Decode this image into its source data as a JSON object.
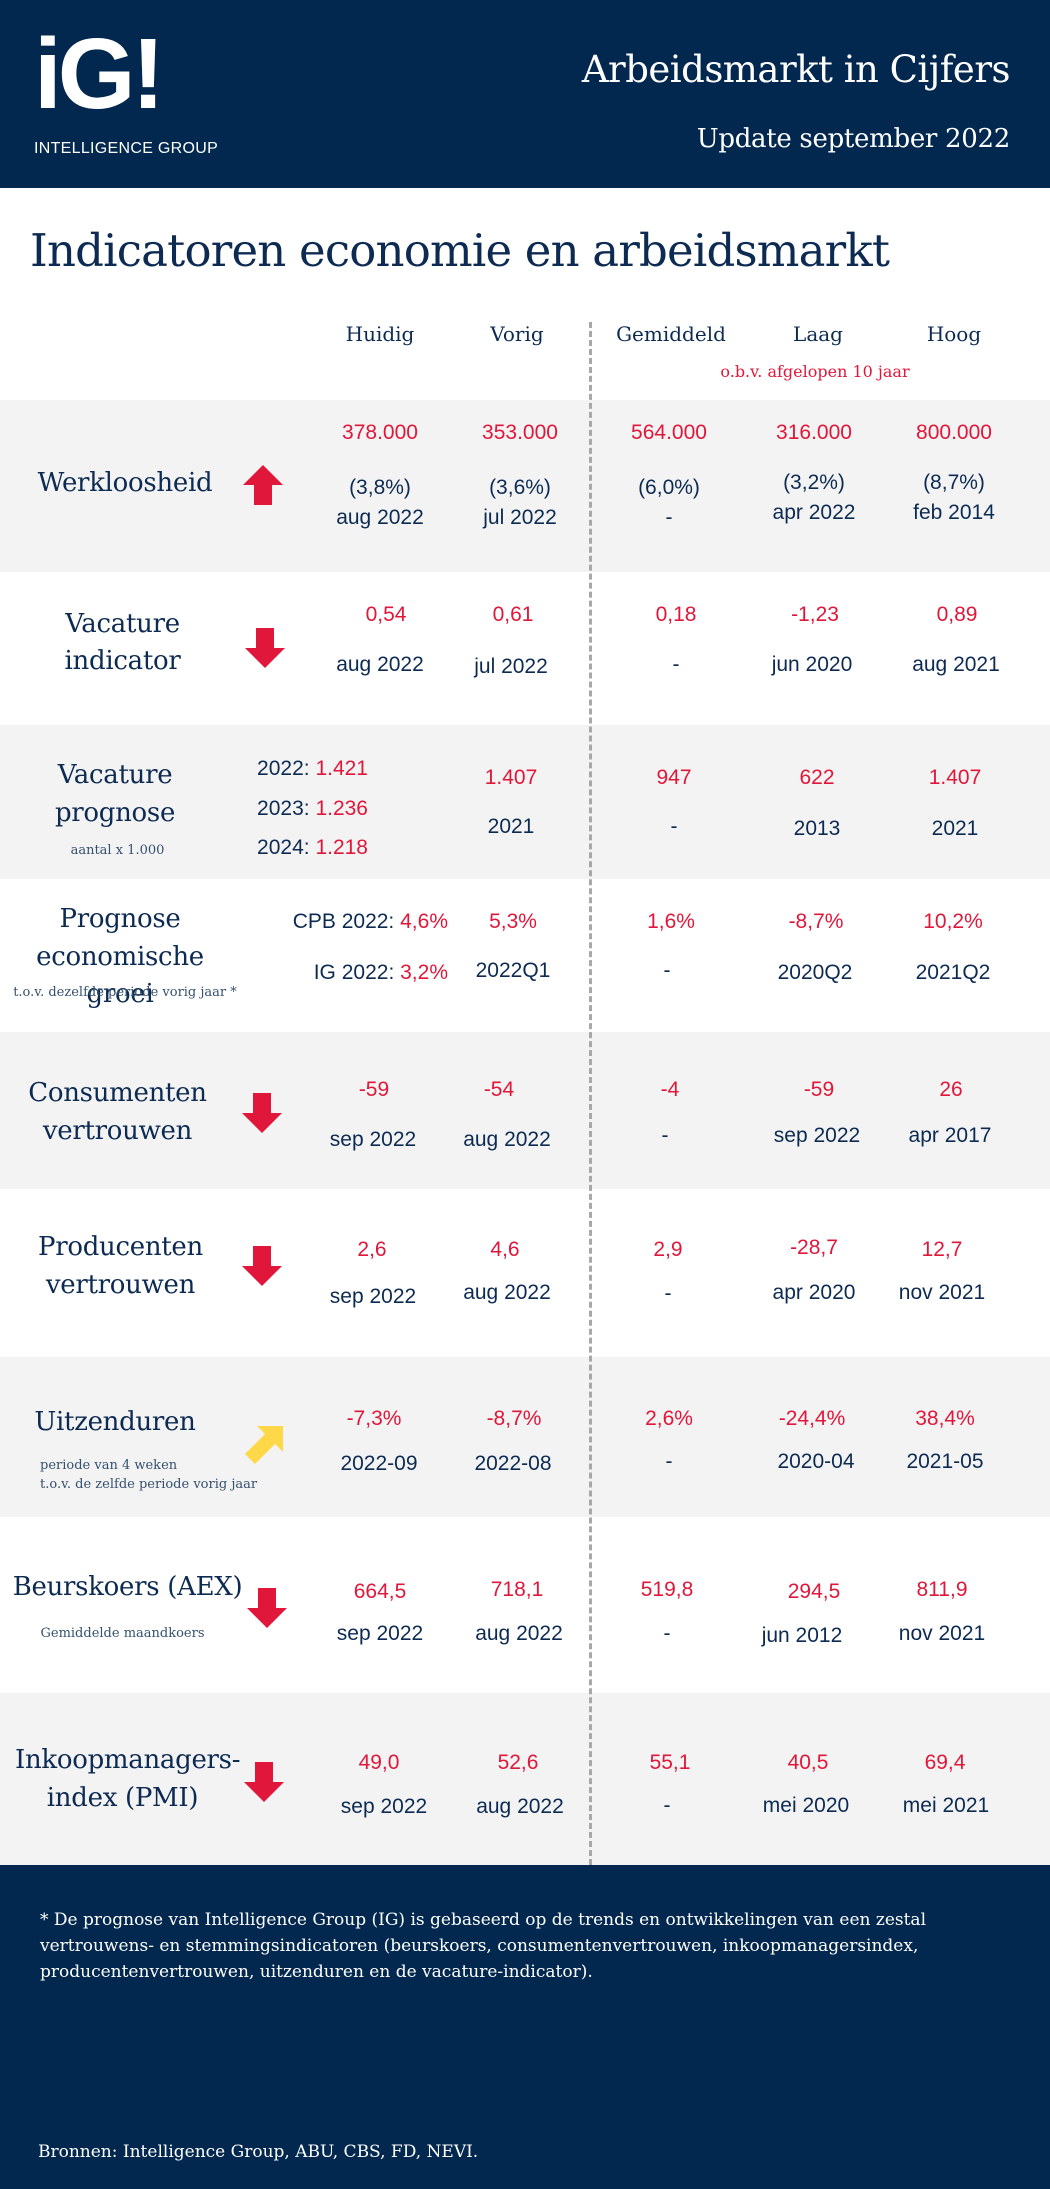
{
  "header": {
    "logo": "iG!",
    "logo_sub": "INTELLIGENCE GROUP",
    "title": "Arbeidsmarkt in Cijfers",
    "subtitle": "Update september 2022"
  },
  "page_title": "Indicatoren economie en arbeidsmarkt",
  "columns": {
    "huidig": "Huidig",
    "vorig": "Vorig",
    "gemiddeld": "Gemiddeld",
    "laag": "Laag",
    "hoog": "Hoog",
    "note": "o.b.v. afgelopen 10 jaar"
  },
  "colors": {
    "navy": "#03284f",
    "red": "#e0173a",
    "yellow": "#ffd84a",
    "row_shade": "#f3f3f3"
  },
  "rows": {
    "werkloosheid": {
      "label": "Werkloosheid",
      "trend": "up-red",
      "huidig": "378.000",
      "huidig_pct": "(3,8%)",
      "huidig_date": "aug 2022",
      "vorig": "353.000",
      "vorig_pct": "(3,6%)",
      "vorig_date": "jul 2022",
      "gem": "564.000",
      "gem_pct": "(6,0%)",
      "gem_date": "-",
      "laag": "316.000",
      "laag_pct": "(3,2%)",
      "laag_date": "apr 2022",
      "hoog": "800.000",
      "hoog_pct": "(8,7%)",
      "hoog_date": "feb 2014"
    },
    "vacature_indicator": {
      "label1": "Vacature",
      "label2": "indicator",
      "trend": "down-red",
      "huidig": "0,54",
      "huidig_date": "aug 2022",
      "vorig": "0,61",
      "vorig_date": "jul 2022",
      "gem": "0,18",
      "gem_date": "-",
      "laag": "-1,23",
      "laag_date": "jun 2020",
      "hoog": "0,89",
      "hoog_date": "aug 2021"
    },
    "vacature_prognose": {
      "label1": "Vacature",
      "label2": "prognose",
      "sublabel": "aantal x 1.000",
      "p2022_label": "2022:",
      "p2022": "1.421",
      "p2023_label": "2023:",
      "p2023": "1.236",
      "p2024_label": "2024:",
      "p2024": "1.218",
      "vorig": "1.407",
      "vorig_date": "2021",
      "gem": "947",
      "gem_date": "-",
      "laag": "622",
      "laag_date": "2013",
      "hoog": "1.407",
      "hoog_date": "2021"
    },
    "prognose_groei": {
      "label1": "Prognose",
      "label2": "economische groei",
      "sublabel": "t.o.v. dezelfde periode vorig jaar *",
      "cpb_label": "CPB 2022:",
      "cpb": "4,6%",
      "ig_label": "IG 2022:",
      "ig": "3,2%",
      "vorig": "5,3%",
      "vorig_date": "2022Q1",
      "gem": "1,6%",
      "gem_date": "-",
      "laag": "-8,7%",
      "laag_date": "2020Q2",
      "hoog": "10,2%",
      "hoog_date": "2021Q2"
    },
    "consumenten": {
      "label1": "Consumenten",
      "label2": "vertrouwen",
      "trend": "down-red",
      "huidig": "-59",
      "huidig_date": "sep 2022",
      "vorig": "-54",
      "vorig_date": "aug 2022",
      "gem": "-4",
      "gem_date": "-",
      "laag": "-59",
      "laag_date": "sep 2022",
      "hoog": "26",
      "hoog_date": "apr 2017"
    },
    "producenten": {
      "label1": "Producenten",
      "label2": "vertrouwen",
      "trend": "down-red",
      "huidig": "2,6",
      "huidig_date": "sep 2022",
      "vorig": "4,6",
      "vorig_date": "aug 2022",
      "gem": "2,9",
      "gem_date": "-",
      "laag": "-28,7",
      "laag_date": "apr 2020",
      "hoog": "12,7",
      "hoog_date": "nov 2021"
    },
    "uitzenduren": {
      "label": "Uitzenduren",
      "sublabel1": "periode van 4 weken",
      "sublabel2": "t.o.v. de zelfde periode vorig jaar",
      "trend": "up-right-yellow",
      "huidig": "-7,3%",
      "huidig_date": "2022-09",
      "vorig": "-8,7%",
      "vorig_date": "2022-08",
      "gem": "2,6%",
      "gem_date": "-",
      "laag": "-24,4%",
      "laag_date": "2020-04",
      "hoog": "38,4%",
      "hoog_date": "2021-05"
    },
    "beurskoers": {
      "label": "Beurskoers (AEX)",
      "sublabel": "Gemiddelde maandkoers",
      "trend": "down-red",
      "huidig": "664,5",
      "huidig_date": "sep 2022",
      "vorig": "718,1",
      "vorig_date": "aug 2022",
      "gem": "519,8",
      "gem_date": "-",
      "laag": "294,5",
      "laag_date": "jun 2012",
      "hoog": "811,9",
      "hoog_date": "nov 2021"
    },
    "pmi": {
      "label1": "Inkoopmanagers-",
      "label2": "index (PMI)",
      "trend": "down-red",
      "huidig": "49,0",
      "huidig_date": "sep 2022",
      "vorig": "52,6",
      "vorig_date": "aug 2022",
      "gem": "55,1",
      "gem_date": "-",
      "laag": "40,5",
      "laag_date": "mei 2020",
      "hoog": "69,4",
      "hoog_date": "mei 2021"
    }
  },
  "footer": {
    "footnote": "* De prognose van Intelligence Group (IG) is gebaseerd op de trends en ontwikkelingen van een zestal vertrouwens- en stemmingsindicatoren (beurskoers, consumentenvertrouwen, inkoopmanagersindex, producentenvertrouwen, uitzenduren en de vacature-indicator).",
    "sources": "Bronnen: Intelligence Group, ABU, CBS, FD, NEVI."
  }
}
